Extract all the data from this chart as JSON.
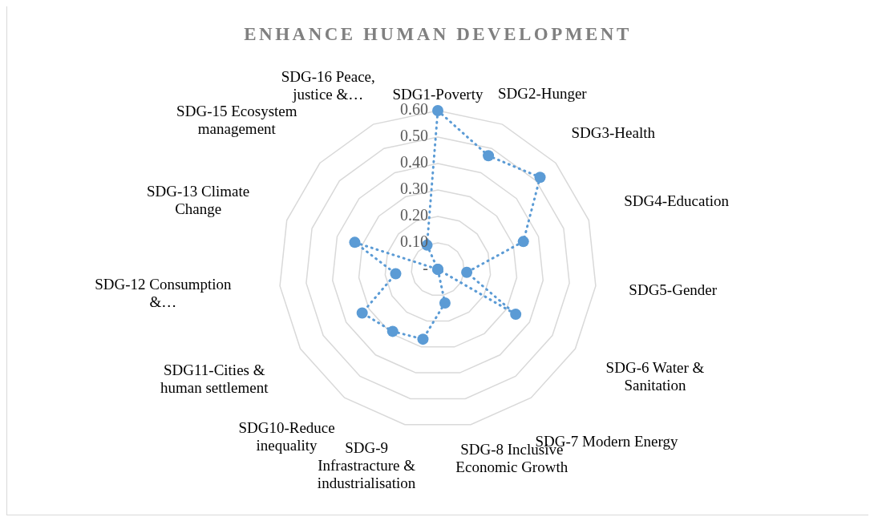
{
  "chart_data": {
    "type": "radar",
    "title": "ENHANCE HUMAN DEVELOPMENT",
    "categories": [
      "SDG1-Poverty",
      "SDG2-Hunger",
      "SDG3-Health",
      "SDG4-Education",
      "SDG5-Gender",
      "SDG-6 Water & Sanitation",
      "SDG-7 Modern Energy",
      "SDG-8 Inclusive Economic Growth",
      "SDG-9 Infrastracture & industrialisation",
      "SDG10-Reduce inequality",
      "SDG11-Cities & human settlement",
      "SDG-12 Consumption &…",
      "SDG-13 Climate Change",
      "SDG-15 Ecosystem management",
      "SDG-16 Peace, justice &…"
    ],
    "series": [
      {
        "color": "#5b9bd5",
        "values": [
          0.6,
          0.47,
          0.52,
          0.34,
          0.11,
          0.34,
          0,
          0.13,
          0.27,
          0.29,
          0.33,
          0.16,
          0.33,
          0,
          0.1
        ]
      }
    ],
    "ylim": [
      0,
      0.6
    ],
    "yticks": [
      {
        "value": 0,
        "label": "-"
      },
      {
        "value": 0.1,
        "label": "0.10"
      },
      {
        "value": 0.2,
        "label": "0.20"
      },
      {
        "value": 0.3,
        "label": "0.30"
      },
      {
        "value": 0.4,
        "label": "0.40"
      },
      {
        "value": 0.5,
        "label": "0.50"
      },
      {
        "value": 0.6,
        "label": "0.60"
      }
    ],
    "grid": true,
    "marker": "circle",
    "line_style": "dotted"
  }
}
